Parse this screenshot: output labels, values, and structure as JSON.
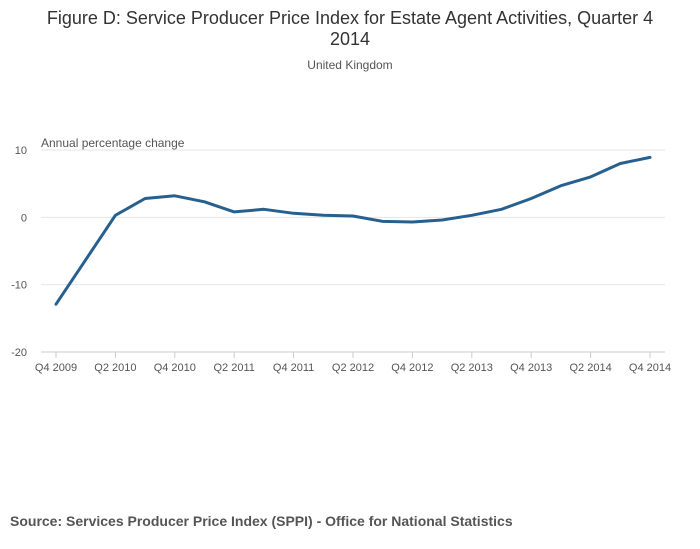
{
  "chart_data": {
    "type": "line",
    "title_line1": "Figure D: Service Producer Price Index for Estate Agent Activities, Quarter 4",
    "title_line2": "2014",
    "subtitle": "United Kingdom",
    "ylabel": "Annual percentage change",
    "xlabel": "",
    "ylim": [
      -20,
      10
    ],
    "yticks": [
      10,
      0,
      -10,
      -20
    ],
    "grid": true,
    "legend": "none",
    "x": [
      "Q4 2009",
      "Q1 2010",
      "Q2 2010",
      "Q3 2010",
      "Q4 2010",
      "Q1 2011",
      "Q2 2011",
      "Q3 2011",
      "Q4 2011",
      "Q1 2012",
      "Q2 2012",
      "Q3 2012",
      "Q4 2012",
      "Q1 2013",
      "Q2 2013",
      "Q3 2013",
      "Q4 2013",
      "Q1 2014",
      "Q2 2014",
      "Q3 2014",
      "Q4 2014"
    ],
    "xtick_labels": [
      "Q4 2009",
      "Q2 2010",
      "Q4 2010",
      "Q2 2011",
      "Q4 2011",
      "Q2 2012",
      "Q4 2012",
      "Q2 2013",
      "Q4 2013",
      "Q2 2014",
      "Q4 2014"
    ],
    "series": [
      {
        "name": "Annual percentage change",
        "color": "#27608f",
        "values": [
          -12.9,
          -6.3,
          0.3,
          2.8,
          3.2,
          2.3,
          0.8,
          1.2,
          0.6,
          0.3,
          0.2,
          -0.6,
          -0.7,
          -0.4,
          0.3,
          1.2,
          2.8,
          4.7,
          6.0,
          8.0,
          8.9
        ]
      }
    ]
  },
  "footer": {
    "source": "Source: Services Producer Price Index (SPPI) - Office for National Statistics"
  }
}
